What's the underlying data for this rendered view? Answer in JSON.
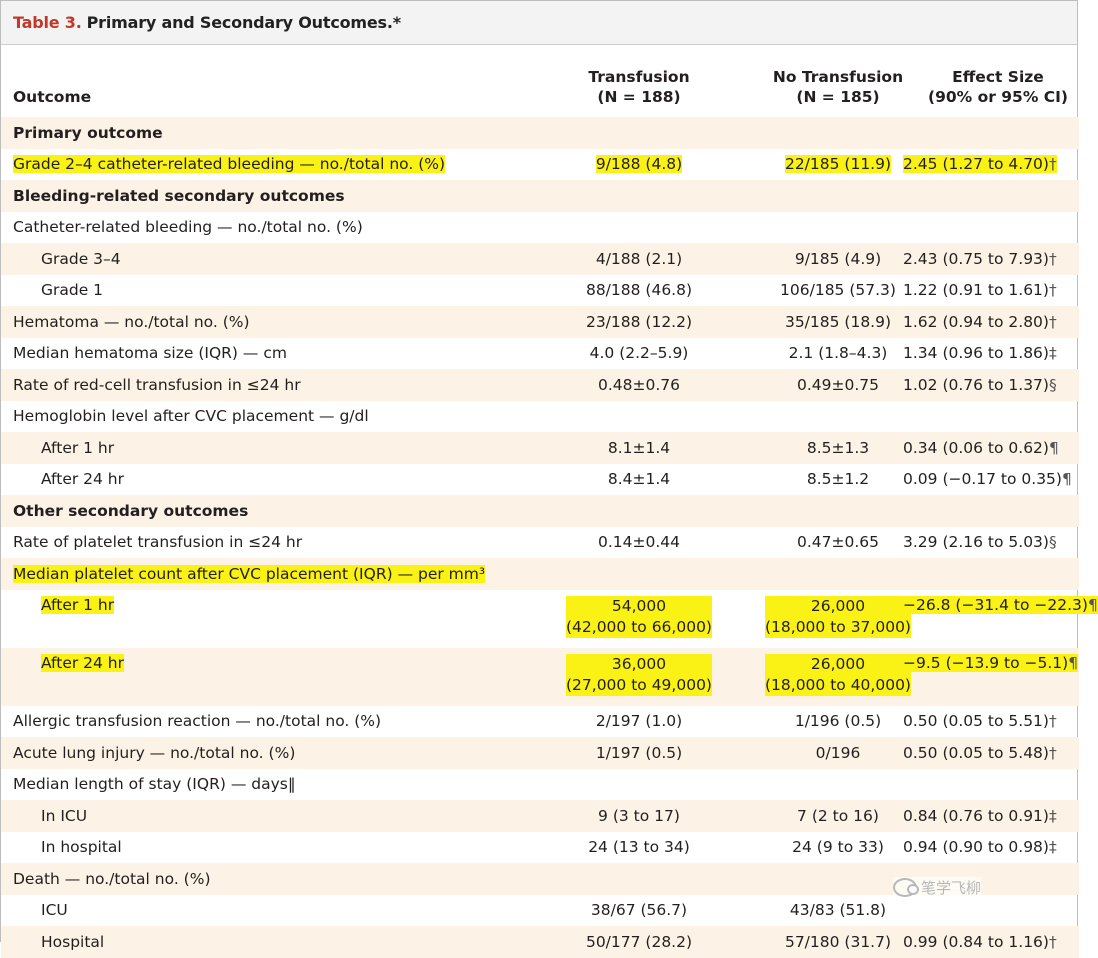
{
  "table": {
    "number": "Table 3.",
    "title": "Primary and Secondary Outcomes.*",
    "headers": {
      "outcome": "Outcome",
      "transfusion": "Transfusion",
      "transfusion_n": "(N = 188)",
      "no_transfusion": "No Transfusion",
      "no_transfusion_n": "(N = 185)",
      "effect": "Effect Size",
      "effect_sub": "(90% or 95% CI)"
    },
    "rows": [
      {
        "label": "Primary outcome",
        "t": "",
        "nt": "",
        "eff": "",
        "mark": "",
        "kind": "section",
        "shade": true,
        "hl": false
      },
      {
        "label": "Grade 2–4 catheter-related bleeding — no./total no. (%)",
        "t": "9/188 (4.8)",
        "nt": "22/185 (11.9)",
        "eff": "2.45 (1.27 to 4.70)",
        "mark": "†",
        "kind": "item",
        "shade": false,
        "hl": true
      },
      {
        "label": "Bleeding-related secondary outcomes",
        "t": "",
        "nt": "",
        "eff": "",
        "mark": "",
        "kind": "section",
        "shade": true,
        "hl": false
      },
      {
        "label": "Catheter-related bleeding — no./total no. (%)",
        "t": "",
        "nt": "",
        "eff": "",
        "mark": "",
        "kind": "item",
        "shade": false,
        "hl": false
      },
      {
        "label": "Grade 3–4",
        "t": "4/188 (2.1)",
        "nt": "9/185 (4.9)",
        "eff": "2.43 (0.75 to 7.93)",
        "mark": "†",
        "kind": "sub",
        "shade": true,
        "hl": false
      },
      {
        "label": "Grade 1",
        "t": "88/188 (46.8)",
        "nt": "106/185 (57.3)",
        "eff": "1.22 (0.91 to 1.61)",
        "mark": "†",
        "kind": "sub",
        "shade": false,
        "hl": false
      },
      {
        "label": "Hematoma — no./total no. (%)",
        "t": "23/188 (12.2)",
        "nt": "35/185 (18.9)",
        "eff": "1.62 (0.94 to 2.80)",
        "mark": "†",
        "kind": "item",
        "shade": true,
        "hl": false
      },
      {
        "label": "Median hematoma size (IQR) — cm",
        "t": "4.0 (2.2–5.9)",
        "nt": "2.1 (1.8–4.3)",
        "eff": "1.34 (0.96 to 1.86)",
        "mark": "‡",
        "kind": "item",
        "shade": false,
        "hl": false
      },
      {
        "label": "Rate of red-cell transfusion in ≤24 hr",
        "t": "0.48±0.76",
        "nt": "0.49±0.75",
        "eff": "1.02 (0.76 to 1.37)",
        "mark": "§",
        "kind": "item",
        "shade": true,
        "hl": false
      },
      {
        "label": "Hemoglobin level after CVC placement — g/dl",
        "t": "",
        "nt": "",
        "eff": "",
        "mark": "",
        "kind": "item",
        "shade": false,
        "hl": false
      },
      {
        "label": "After 1 hr",
        "t": "8.1±1.4",
        "nt": "8.5±1.3",
        "eff": "0.34 (0.06 to 0.62)",
        "mark": "¶",
        "kind": "sub",
        "shade": true,
        "hl": false
      },
      {
        "label": "After 24 hr",
        "t": "8.4±1.4",
        "nt": "8.5±1.2",
        "eff": "0.09 (−0.17 to 0.35)",
        "mark": "¶",
        "kind": "sub",
        "shade": false,
        "hl": false
      },
      {
        "label": "Other secondary outcomes",
        "t": "",
        "nt": "",
        "eff": "",
        "mark": "",
        "kind": "section",
        "shade": true,
        "hl": false
      },
      {
        "label": "Rate of platelet transfusion in ≤24 hr",
        "t": "0.14±0.44",
        "nt": "0.47±0.65",
        "eff": "3.29 (2.16 to 5.03)",
        "mark": "§",
        "kind": "item",
        "shade": false,
        "hl": false
      },
      {
        "label": "Median platelet count after CVC placement (IQR) — per mm³",
        "t": "",
        "nt": "",
        "eff": "",
        "mark": "",
        "kind": "item",
        "shade": true,
        "hl": true
      },
      {
        "label": "After 1 hr",
        "t": "54,000",
        "t2": "(42,000 to 66,000)",
        "nt": "26,000",
        "nt2": "(18,000 to 37,000)",
        "eff": "−26.8 (−31.4 to −22.3)",
        "mark": "¶",
        "kind": "sub",
        "shade": false,
        "hl": true,
        "tall": true
      },
      {
        "label": "After 24 hr",
        "t": "36,000",
        "t2": "(27,000 to 49,000)",
        "nt": "26,000",
        "nt2": "(18,000 to 40,000)",
        "eff": "−9.5 (−13.9 to −5.1)",
        "mark": "¶",
        "kind": "sub",
        "shade": true,
        "hl": true,
        "tall": true
      },
      {
        "label": "Allergic transfusion reaction — no./total no. (%)",
        "t": "2/197 (1.0)",
        "nt": "1/196 (0.5)",
        "eff": "0.50 (0.05 to 5.51)",
        "mark": "†",
        "kind": "item",
        "shade": false,
        "hl": false
      },
      {
        "label": "Acute lung injury — no./total no. (%)",
        "t": "1/197 (0.5)",
        "nt": "0/196",
        "eff": "0.50 (0.05 to 5.48)",
        "mark": "†",
        "kind": "item",
        "shade": true,
        "hl": false
      },
      {
        "label": "Median length of stay (IQR) — days‖",
        "t": "",
        "nt": "",
        "eff": "",
        "mark": "",
        "kind": "item",
        "shade": false,
        "hl": false
      },
      {
        "label": "In ICU",
        "t": "9 (3 to 17)",
        "nt": "7 (2 to 16)",
        "eff": "0.84 (0.76 to 0.91)",
        "mark": "‡",
        "kind": "sub",
        "shade": true,
        "hl": false
      },
      {
        "label": "In hospital",
        "t": "24 (13 to 34)",
        "nt": "24 (9 to 33)",
        "eff": "0.94 (0.90 to 0.98)",
        "mark": "‡",
        "kind": "sub",
        "shade": false,
        "hl": false
      },
      {
        "label": "Death — no./total no. (%)",
        "t": "",
        "nt": "",
        "eff": "",
        "mark": "",
        "kind": "item",
        "shade": true,
        "hl": false
      },
      {
        "label": "ICU",
        "t": "38/67 (56.7)",
        "nt": "43/83 (51.8)",
        "eff": "",
        "mark": "",
        "kind": "sub",
        "shade": false,
        "hl": false
      },
      {
        "label": "Hospital",
        "t": "50/177 (28.2)",
        "nt": "57/180 (31.7)",
        "eff": "0.99 (0.84 to 1.16)",
        "mark": "†",
        "kind": "sub",
        "shade": true,
        "hl": false
      }
    ]
  },
  "watermark": {
    "text": "笔学飞柳"
  }
}
